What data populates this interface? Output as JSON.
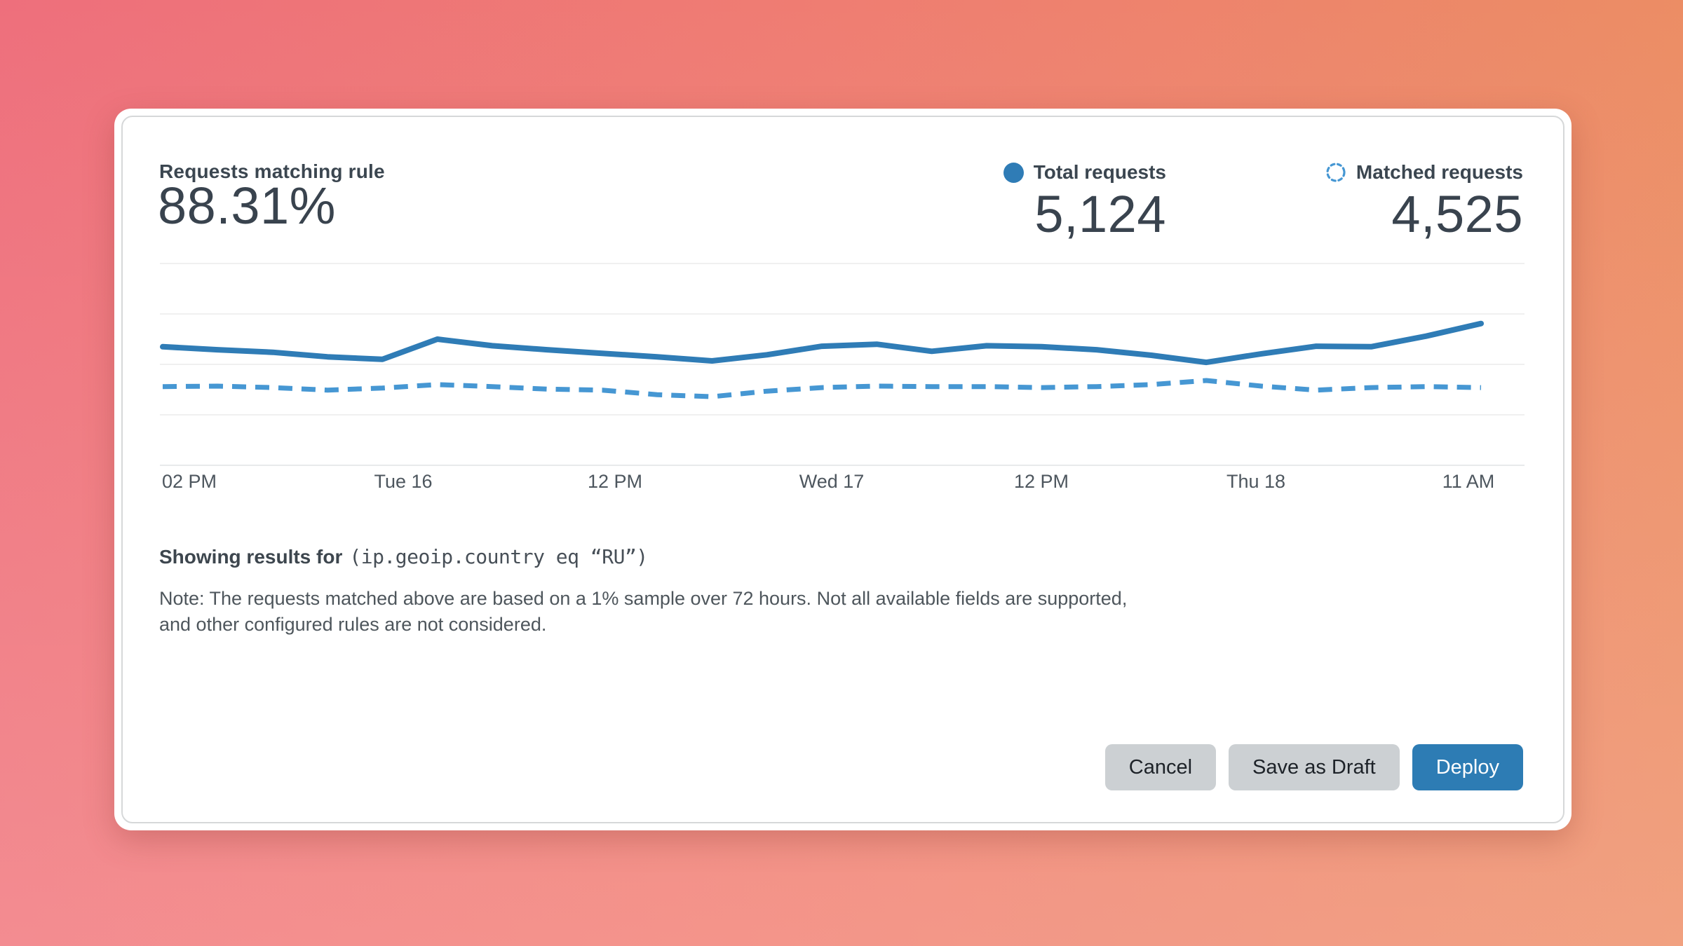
{
  "card": {
    "stat": {
      "label": "Requests matching rule",
      "value": "88.31%"
    },
    "legends": [
      {
        "label": "Total requests",
        "value": "5,124",
        "marker": "solid-dot-icon",
        "color": "#2f7cb6"
      },
      {
        "label": "Matched requests",
        "value": "4,525",
        "marker": "dashed-circle-icon",
        "color": "#4697d3"
      }
    ],
    "filter": {
      "prefix": "Showing results for",
      "expression": "(ip.geoip.country eq “RU”)"
    },
    "note": {
      "line1": "Note: The requests matched above are based on a 1% sample over 72 hours. Not all available fields are supported,",
      "line2": "and other configured rules are not considered."
    },
    "buttons": {
      "cancel": "Cancel",
      "save_draft": "Save as Draft",
      "deploy": "Deploy"
    }
  },
  "colors": {
    "accent_blue": "#2f7cb6",
    "accent_blue_light": "#4697d3",
    "deploy_button": "#2d7cb4",
    "gray_button": "#ccd0d3",
    "text_dark": "#3b4650",
    "gradient_top_left": "#ee6f7c",
    "gradient_top_right": "#eb9062",
    "gradient_bottom_left": "#f9a3a5",
    "gradient_bottom_right": "#fb9e7c"
  },
  "chart_data": {
    "type": "line",
    "title": "",
    "xlabel": "",
    "ylabel": "",
    "x_tick_labels": [
      "02 PM",
      "Tue 16",
      "12 PM",
      "Wed 17",
      "12 PM",
      "Thu 18",
      "11 AM"
    ],
    "x_range_note": "72 hours, Tue–Thu, ~3h sample buckets",
    "y_axis_labeled": false,
    "y_max_estimate": 400,
    "grid": "horizontal",
    "legend_position": "top-right",
    "series": [
      {
        "name": "Total requests",
        "style": "solid",
        "color": "#2f7cb6",
        "values": [
          235,
          229,
          224,
          215,
          210,
          250,
          237,
          229,
          222,
          215,
          207,
          219,
          236,
          240,
          226,
          237,
          235,
          229,
          218,
          204,
          221,
          236,
          235,
          256,
          281
        ]
      },
      {
        "name": "Matched requests",
        "style": "dashed",
        "color": "#4697d3",
        "values": [
          156,
          157,
          154,
          149,
          153,
          160,
          156,
          151,
          149,
          140,
          136,
          147,
          154,
          157,
          156,
          156,
          154,
          156,
          160,
          168,
          157,
          149,
          154,
          156,
          154
        ]
      }
    ]
  }
}
